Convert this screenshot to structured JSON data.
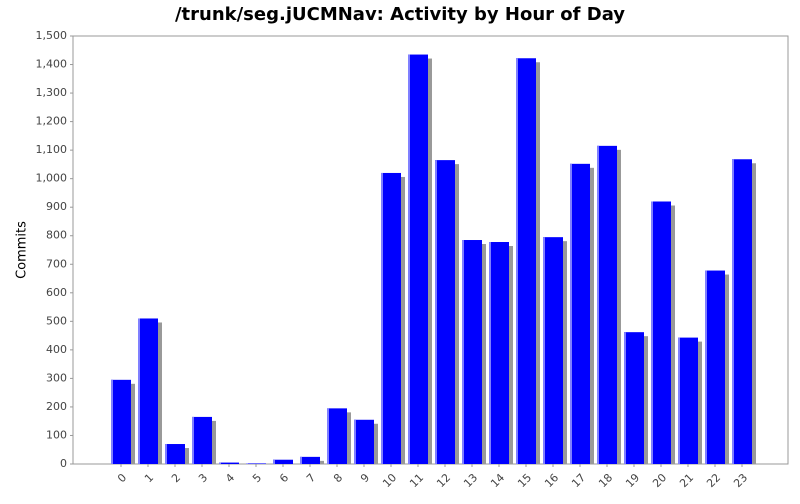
{
  "chart_data": {
    "type": "bar",
    "title": "/trunk/seg.jUCMNav: Activity by Hour of Day",
    "y_label": "Commits",
    "categories": [
      "0",
      "1",
      "2",
      "3",
      "4",
      "5",
      "6",
      "7",
      "8",
      "9",
      "10",
      "11",
      "12",
      "13",
      "14",
      "15",
      "16",
      "17",
      "18",
      "19",
      "20",
      "21",
      "22",
      "23"
    ],
    "values": [
      295,
      510,
      70,
      165,
      5,
      2,
      15,
      25,
      195,
      155,
      1020,
      1435,
      1065,
      785,
      778,
      1422,
      795,
      1052,
      1115,
      462,
      920,
      443,
      678,
      1068
    ],
    "color": "#0000ff",
    "ylim": [
      0,
      1500
    ],
    "yticks": [
      0,
      100,
      200,
      300,
      400,
      500,
      600,
      700,
      800,
      900,
      {
        "value": 1000,
        "label": "1,000"
      },
      {
        "value": 1100,
        "label": "1,100"
      },
      {
        "value": 1200,
        "label": "1,200"
      },
      {
        "value": 1300,
        "label": "1,300"
      },
      {
        "value": 1400,
        "label": "1,400"
      },
      {
        "value": 1500,
        "label": "1,500"
      }
    ],
    "grid": false
  }
}
